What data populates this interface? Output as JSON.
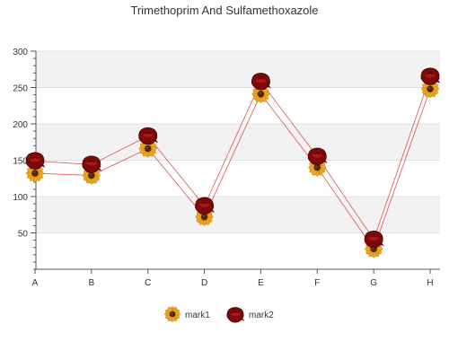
{
  "chart_data": {
    "type": "line",
    "title": "Trimethoprim And Sulfamethoxazole",
    "xlabel": "",
    "ylabel": "",
    "categories": [
      "A",
      "B",
      "C",
      "D",
      "E",
      "F",
      "G",
      "H"
    ],
    "ylim": [
      0,
      300
    ],
    "yticks": [
      50,
      100,
      150,
      200,
      250,
      300
    ],
    "grid": true,
    "legend_position": "bottom",
    "series": [
      {
        "name": "mark1",
        "values": [
          132,
          129,
          166,
          72,
          241,
          140,
          28,
          248
        ],
        "marker": "sunflower-icon",
        "line_color": "#d9534f"
      },
      {
        "name": "mark2",
        "values": [
          149,
          144,
          183,
          87,
          258,
          155,
          41,
          265
        ],
        "marker": "rose-icon",
        "line_color": "#d9534f"
      }
    ],
    "band_colors": [
      "#f2f2f2",
      "#ffffff"
    ]
  }
}
